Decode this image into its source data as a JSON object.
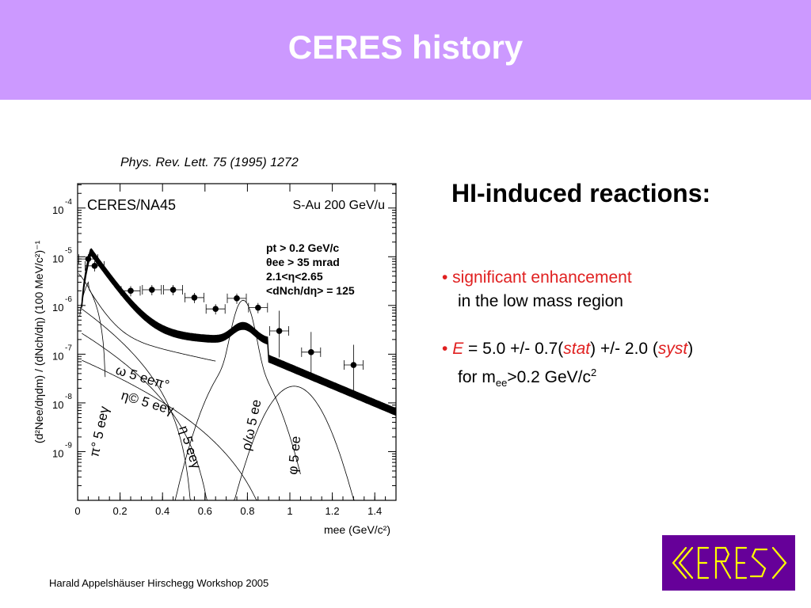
{
  "slide": {
    "title": "CERES history",
    "citation": "Phys. Rev. Lett. 75 (1995) 1272",
    "right_title": "HI-induced reactions:",
    "bullet1_line1": "• significant enhancement",
    "bullet1_line2": "in the low mass region",
    "bullet2_prefix": "• ",
    "bullet2_E": "E",
    "bullet2_mid": " = 5.0 +/- 0.7(",
    "bullet2_stat": "stat",
    "bullet2_mid2": ") +/- 2.0 (",
    "bullet2_syst": "syst",
    "bullet2_end": ")",
    "bullet2_line2_a": "for m",
    "bullet2_line2_sub": "ee",
    "bullet2_line2_b": ">0.2 GeV/c",
    "bullet2_line2_sup": "2",
    "footer": "Harald Appelshäuser  Hirschegg Workshop 2005",
    "logo_text": "CERES",
    "colors": {
      "header_bg": "#cc99ff",
      "accent_red": "#e02020",
      "logo_bg": "#660099",
      "logo_fg": "#ffff00"
    }
  },
  "chart_data": {
    "type": "scatter",
    "scale": "log-y",
    "xlim": [
      0,
      1.5
    ],
    "ylim_exponent": [
      -10,
      -3.5
    ],
    "x_ticks": [
      "0",
      "0.2",
      "0.4",
      "0.6",
      "0.8",
      "1",
      "1.2",
      "1.4"
    ],
    "y_tick_base": "10",
    "y_tick_exponents": [
      "-4",
      "-5",
      "-6",
      "-7",
      "-8",
      "-9"
    ],
    "ylabel": "(d²Nee/dηdm) / (dNch/dη) (100 MeV/c²)⁻¹",
    "xlabel": "mee (GeV/c²)",
    "experiment": "CERES/NA45",
    "system": "S-Au 200 GeV/u",
    "cuts": [
      "pt > 0.2 GeV/c",
      "θee > 35 mrad",
      "2.1<η<2.65",
      "<dNch/dη> = 125"
    ],
    "data_points": [
      {
        "x": 0.05,
        "y": 9e-06
      },
      {
        "x": 0.08,
        "y": 6.5e-06
      },
      {
        "x": 0.25,
        "y": 2e-06
      },
      {
        "x": 0.35,
        "y": 2.1e-06
      },
      {
        "x": 0.45,
        "y": 2.1e-06
      },
      {
        "x": 0.55,
        "y": 1.45e-06
      },
      {
        "x": 0.65,
        "y": 8.5e-07
      },
      {
        "x": 0.75,
        "y": 1.4e-06
      },
      {
        "x": 0.85,
        "y": 9e-07
      },
      {
        "x": 0.95,
        "y": 3e-07
      },
      {
        "x": 1.1,
        "y": 1.1e-07
      },
      {
        "x": 1.3,
        "y": 6e-08
      }
    ],
    "annotations": [
      "ω 5 eeπ°",
      "η© 5 eeγ",
      "π° 5 eeγ",
      "η 5 eeγ",
      "ρ/ω 5 ee",
      "φ 5 ee"
    ]
  }
}
